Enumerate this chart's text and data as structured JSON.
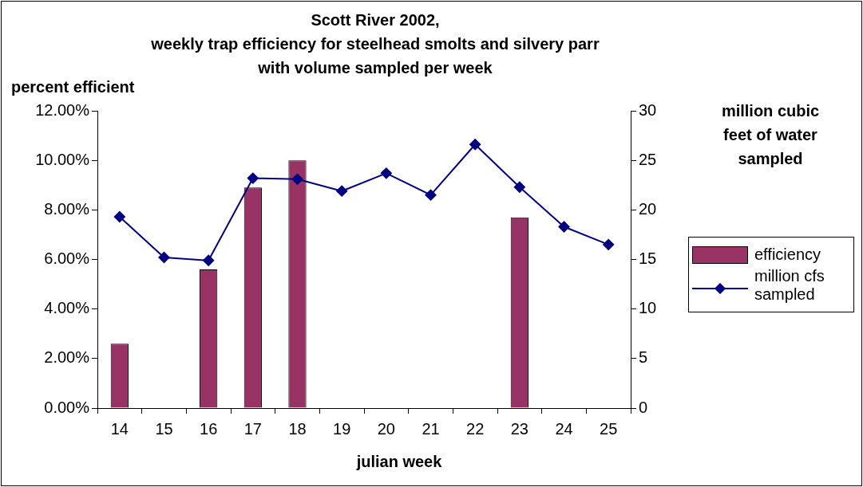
{
  "chart_data": {
    "type": "bar",
    "title": "Scott River 2002,",
    "subtitle": "weekly trap efficiency for steelhead smolts and silvery parr with volume sampled per week",
    "xlabel": "julian week",
    "ylabel": "percent efficient",
    "y2label": "million cubic feet of water sampled",
    "categories": [
      "14",
      "15",
      "16",
      "17",
      "18",
      "19",
      "20",
      "21",
      "22",
      "23",
      "24",
      "25"
    ],
    "series": [
      {
        "name": "efficiency",
        "color": "#993366",
        "values": [
          2.6,
          null,
          5.6,
          8.9,
          10.0,
          null,
          null,
          null,
          null,
          7.7,
          null,
          null
        ]
      },
      {
        "name": "million cfs sampled",
        "type": "line",
        "axis": "y2",
        "color": "#000080",
        "values": [
          19.3,
          15.2,
          14.9,
          23.2,
          23.1,
          21.9,
          23.7,
          21.5,
          26.6,
          22.3,
          18.3,
          16.5
        ]
      }
    ],
    "ylim": [
      0,
      12
    ],
    "yticks": [
      {
        "value": 0,
        "label": "0.00%"
      },
      {
        "value": 2,
        "label": "2.00%"
      },
      {
        "value": 4,
        "label": "4.00%"
      },
      {
        "value": 6,
        "label": "6.00%"
      },
      {
        "value": 8,
        "label": "8.00%"
      },
      {
        "value": 10,
        "label": "10.00%"
      },
      {
        "value": 12,
        "label": "12.00%"
      }
    ],
    "y2lim": [
      0,
      30
    ],
    "y2ticks": [
      0,
      5,
      10,
      15,
      20,
      25,
      30
    ],
    "grid": false,
    "legend": "right",
    "marker": "diamond",
    "line_style": "solid"
  }
}
